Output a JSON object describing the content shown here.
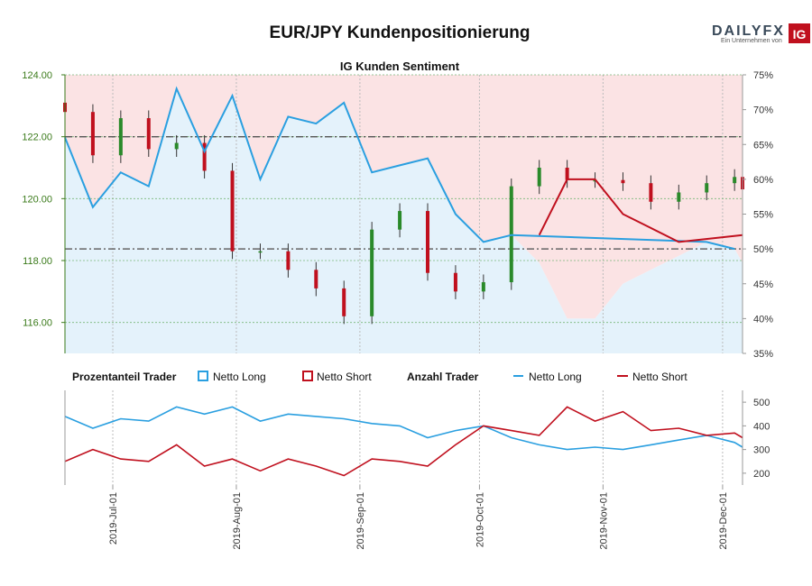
{
  "header": {
    "title": "EUR/JPY Kundenpositionierung",
    "subtitle": "IG Kunden Sentiment",
    "brand": "DAILYFX",
    "brand_tagline": "Ein Unternehmen von",
    "brand_logo": "IG"
  },
  "legend": {
    "group1_title": "Prozentanteil Trader",
    "group1_long": "Netto Long",
    "group1_short": "Netto Short",
    "group2_title": "Anzahl Trader",
    "group2_long": "Netto Long",
    "group2_short": "Netto Short"
  },
  "colors": {
    "long": "#2a9fe0",
    "short": "#c0101e",
    "long_fill": "#e4f2fb",
    "short_fill": "#fbe3e4",
    "candle_up": "#2a8a2a",
    "candle_down": "#c0101e",
    "left_axis": "#3a7a1a"
  },
  "chart_data": [
    {
      "type": "candlestick+area",
      "title": "IG Kunden Sentiment",
      "x_dates": [
        "2019-06-19",
        "2019-06-26",
        "2019-07-03",
        "2019-07-10",
        "2019-07-17",
        "2019-07-24",
        "2019-07-31",
        "2019-08-07",
        "2019-08-14",
        "2019-08-21",
        "2019-08-28",
        "2019-09-04",
        "2019-09-11",
        "2019-09-18",
        "2019-09-25",
        "2019-10-02",
        "2019-10-09",
        "2019-10-16",
        "2019-10-23",
        "2019-10-30",
        "2019-11-06",
        "2019-11-13",
        "2019-11-20",
        "2019-11-27",
        "2019-12-04",
        "2019-12-06"
      ],
      "price_close": [
        122.8,
        121.4,
        122.6,
        121.6,
        121.8,
        120.9,
        118.3,
        118.3,
        117.7,
        117.1,
        116.2,
        119.0,
        119.6,
        117.6,
        117.0,
        117.3,
        120.4,
        121.0,
        120.6,
        120.6,
        120.5,
        119.9,
        120.2,
        120.5,
        120.7,
        120.3
      ],
      "long_pct": [
        66,
        56,
        61,
        59,
        73,
        64,
        72,
        60,
        69,
        68,
        71,
        61,
        62,
        63,
        55,
        51,
        52,
        48,
        40,
        40,
        45,
        47,
        49,
        51,
        50,
        48
      ],
      "short_pct": [
        34,
        44,
        39,
        41,
        27,
        36,
        28,
        40,
        31,
        32,
        29,
        39,
        38,
        37,
        45,
        49,
        48,
        52,
        60,
        60,
        55,
        53,
        51,
        49,
        50,
        52
      ],
      "y_left": {
        "min": 115,
        "max": 124,
        "ticks": [
          "116.00",
          "118.00",
          "120.00",
          "122.00",
          "124.00"
        ]
      },
      "y_right": {
        "min": 35,
        "max": 75,
        "ticks": [
          "35%",
          "40%",
          "45%",
          "50%",
          "55%",
          "60%",
          "65%",
          "70%",
          "75%"
        ]
      },
      "reference_lines": [
        {
          "axis": "right",
          "value": 50
        },
        {
          "axis": "left",
          "value": 122
        }
      ]
    },
    {
      "type": "line",
      "title": "Anzahl Trader",
      "x_dates": [
        "2019-06-19",
        "2019-06-26",
        "2019-07-03",
        "2019-07-10",
        "2019-07-17",
        "2019-07-24",
        "2019-07-31",
        "2019-08-07",
        "2019-08-14",
        "2019-08-21",
        "2019-08-28",
        "2019-09-04",
        "2019-09-11",
        "2019-09-18",
        "2019-09-25",
        "2019-10-02",
        "2019-10-09",
        "2019-10-16",
        "2019-10-23",
        "2019-10-30",
        "2019-11-06",
        "2019-11-13",
        "2019-11-20",
        "2019-11-27",
        "2019-12-04",
        "2019-12-06"
      ],
      "series": [
        {
          "name": "Netto Long",
          "values": [
            440,
            390,
            430,
            420,
            480,
            450,
            480,
            420,
            450,
            440,
            430,
            410,
            400,
            350,
            380,
            400,
            350,
            320,
            300,
            310,
            300,
            320,
            340,
            360,
            330,
            310
          ]
        },
        {
          "name": "Netto Short",
          "values": [
            250,
            300,
            260,
            250,
            320,
            230,
            260,
            210,
            260,
            230,
            190,
            260,
            250,
            230,
            320,
            400,
            380,
            360,
            480,
            420,
            460,
            380,
            390,
            360,
            370,
            350
          ]
        }
      ],
      "y_right": {
        "min": 150,
        "max": 550,
        "ticks": [
          "200",
          "300",
          "400",
          "500"
        ]
      }
    }
  ],
  "x_axis": {
    "tick_labels": [
      "2019-Jul-01",
      "2019-Aug-01",
      "2019-Sep-01",
      "2019-Oct-01",
      "2019-Nov-01",
      "2019-Dec-01"
    ],
    "tick_dates": [
      "2019-07-01",
      "2019-08-01",
      "2019-09-01",
      "2019-10-01",
      "2019-11-01",
      "2019-12-01"
    ],
    "start": "2019-06-19",
    "end": "2019-12-06"
  }
}
